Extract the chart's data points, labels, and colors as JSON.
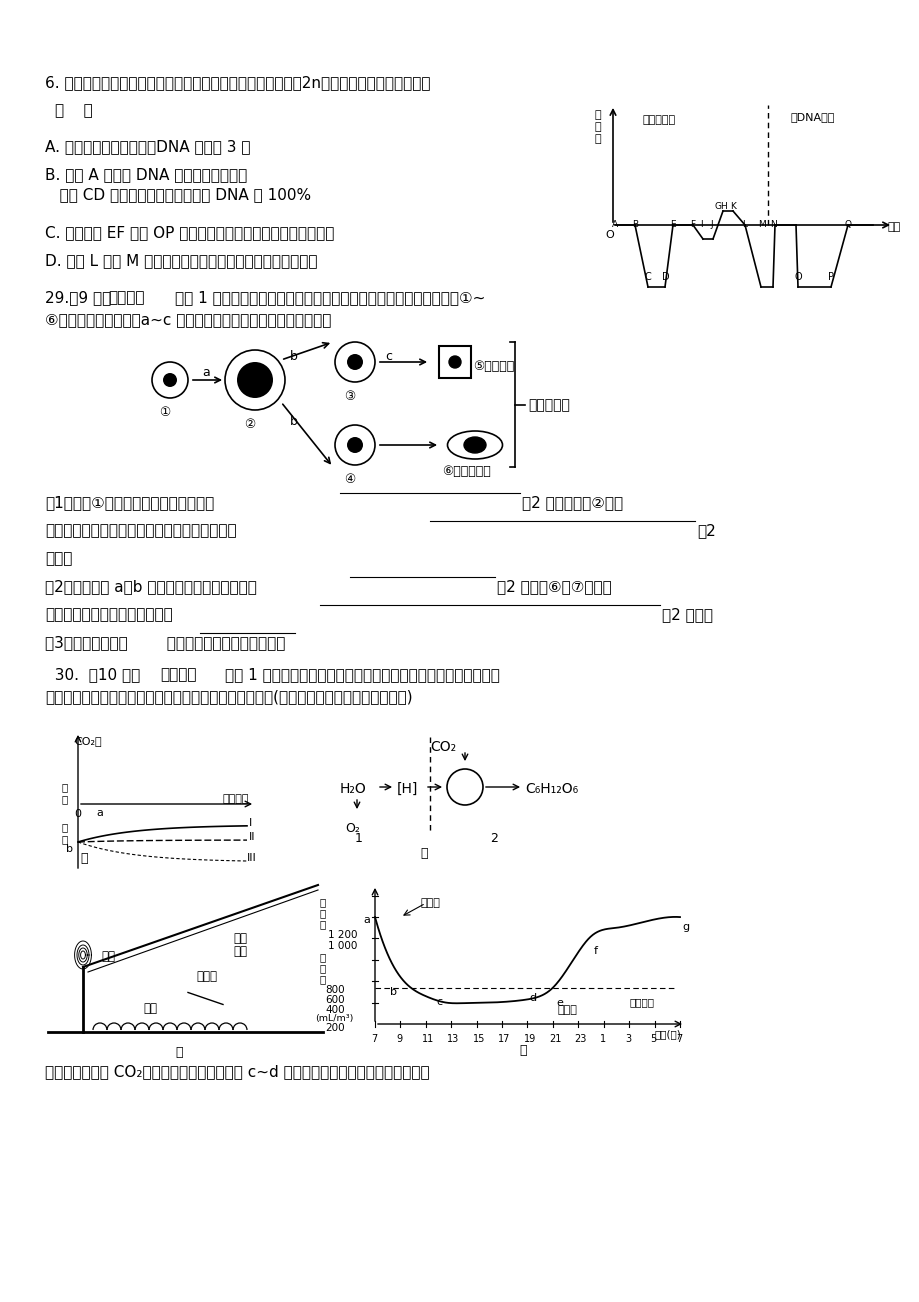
{
  "bg_color": "#ffffff",
  "figsize": [
    9.2,
    13.02
  ],
  "dpi": 100,
  "q6_text": "6. 如图示为某生物细胞分裂过程示意图（体细胞染色体数目为2n），据图分析不能得出的是",
  "q6_paren": "（    ）",
  "q6_A": "A. 图示细胞分裂过程中，DNA 复制了 3 次",
  "q6_B": "B. 若在 A 点使核 DNA 带上同位素标记，",
  "q6_B2": "   则在 CD 段可检测到含有标记的核 DNA 占 100%",
  "q6_C": "C. 在图中的 EF 段和 OP 段，细胞中含有的染色体数都是相等的",
  "q6_D": "D. 图中 L 点到 M 点所示过程的进行，与细胞膜的流动性有关",
  "q29_header_pre": "29.（9 分，",
  "q29_header_bold": "除标注外",
  "q29_header_post": "每空 1 分）如图为人体细胞分裂、分化、衰老、凋亡的示意图，图中①~",
  "q29_sub": "⑥为各个时期的细胞，a~c 表示细胞进行的生理过程，据图分析：",
  "q29_1pre": "（1）细胞①与植物细胞最主要的区别是",
  "q29_1mid": "（2 分），细胞②不能",
  "q29_1b": "无限长大的原因是受细胞核控制能力的限制以及",
  "q29_1c": "）2",
  "q29_1d": "分）。",
  "q29_2pre": "（2）直接参与 a、b 过程的无膜结构的细胞器有",
  "q29_2mid": "（2 分），⑥与⑦基因型",
  "q29_2b": "相同但蛋白质种类不同的原因是",
  "q29_2c": "（2 分）。",
  "q29_3": "（3）细胞凋亡是由        决定的细胞自动死亡的过程。",
  "q30_pre": "  30.  （10 分，",
  "q30_bold": "除标注外",
  "q30_post": "每空 1 分）下列图示中甲、乙所示植物光合作用与光照强度之间的",
  "q30_sub": "关系和相关生理过程；丙、丁表示种植蔬菜的大棚剪面图(棚顶的草席是用草制成的覆盖物)",
  "q30_last": "和一天中大棚内 CO₂浓度变化的曲线，其中在 c~d 期间打开大棚通风口。请据图回答："
}
